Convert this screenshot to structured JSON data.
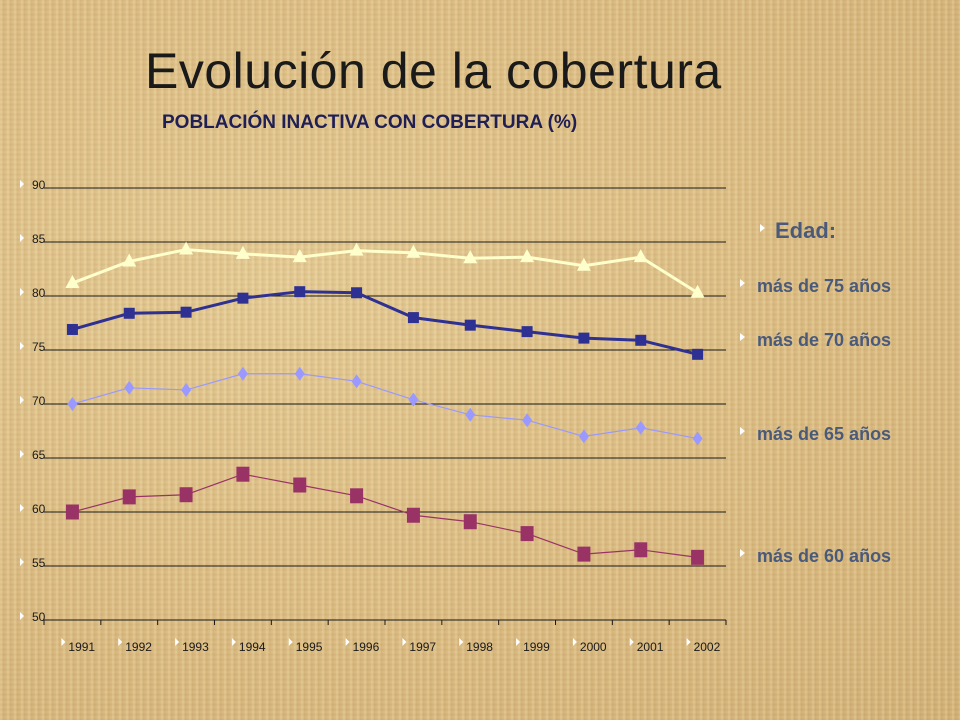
{
  "page": {
    "title": "Evolución de la cobertura"
  },
  "legend": {
    "title": "Edad:",
    "items": [
      "más de 75 años",
      "más de 70 años",
      "más de 65 años",
      "más de 60 años"
    ]
  },
  "colors": {
    "series_75": "#ffffcc",
    "series_70": "#2e3192",
    "series_65": "#9999ff",
    "series_60": "#993366",
    "gridline": "#1a1a1a",
    "tick_text": "#1a1a1a"
  },
  "chart_data": {
    "type": "line",
    "title": "POBLACIÓN INACTIVA CON COBERTURA (%)",
    "xlabel": "",
    "ylabel": "",
    "ylim": [
      50,
      90
    ],
    "yticks": [
      50,
      55,
      60,
      65,
      70,
      75,
      80,
      85,
      90
    ],
    "grid": true,
    "legend_position": "right",
    "categories": [
      "1991",
      "1992",
      "1993",
      "1994",
      "1995",
      "1996",
      "1997",
      "1998",
      "1999",
      "2000",
      "2001",
      "2002"
    ],
    "series": [
      {
        "name": "más de 75 años",
        "marker": "triangle",
        "values": [
          81.2,
          83.2,
          84.3,
          83.9,
          83.6,
          84.2,
          84.0,
          83.5,
          83.6,
          82.8,
          83.6,
          80.3
        ]
      },
      {
        "name": "más de 70 años",
        "marker": "square",
        "values": [
          76.9,
          78.4,
          78.5,
          79.8,
          80.4,
          80.3,
          78.0,
          77.3,
          76.7,
          76.1,
          75.9,
          74.6
        ]
      },
      {
        "name": "más de 65 años",
        "marker": "diamond",
        "values": [
          70.0,
          71.5,
          71.3,
          72.8,
          72.8,
          72.1,
          70.4,
          69.0,
          68.5,
          67.0,
          67.8,
          66.8
        ]
      },
      {
        "name": "más de 60 años",
        "marker": "square",
        "values": [
          60.0,
          61.4,
          61.6,
          63.5,
          62.5,
          61.5,
          59.7,
          59.1,
          58.0,
          56.1,
          56.5,
          55.8
        ]
      }
    ]
  }
}
